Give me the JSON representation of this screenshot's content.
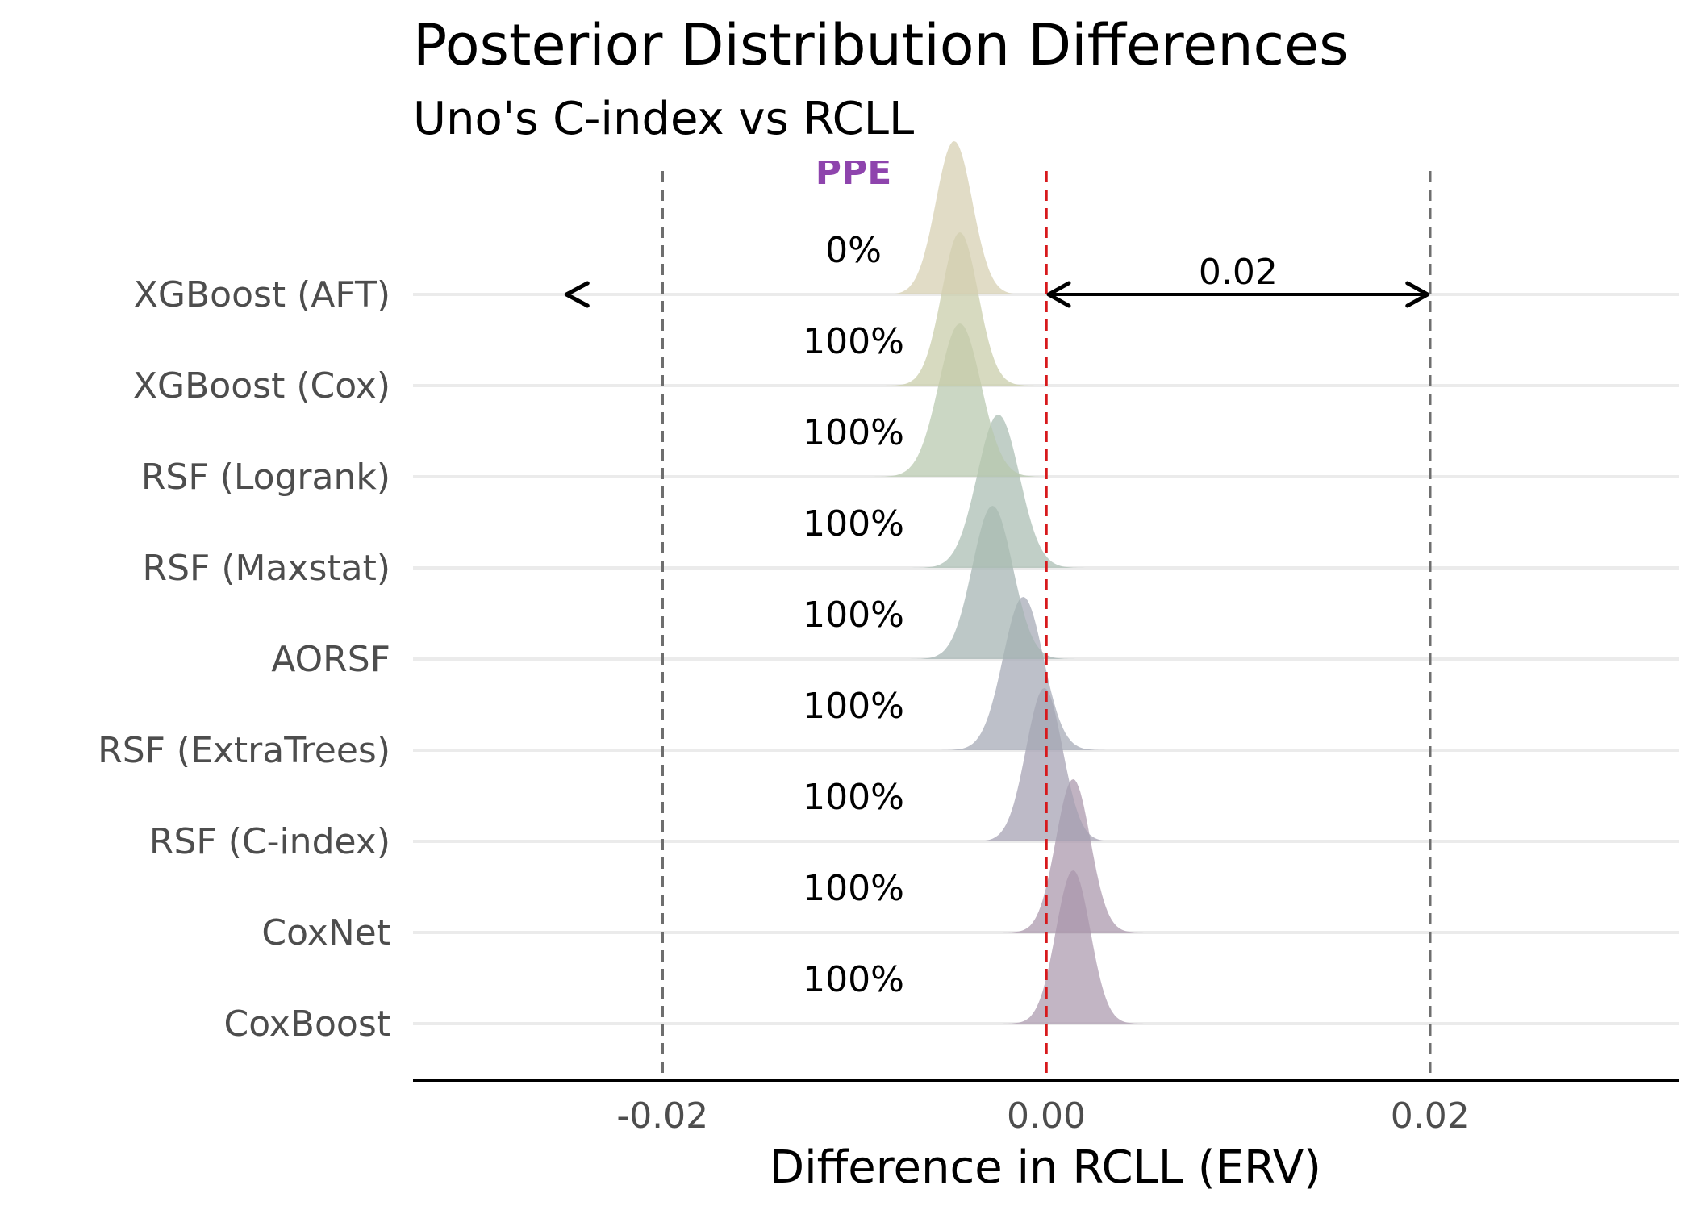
{
  "chart_data": {
    "type": "ridgeline",
    "title": "Posterior Distribution Differences",
    "subtitle": "Uno's C-index vs RCLL",
    "xlabel": "Difference in RCLL (ERV)",
    "xlim": [
      -0.033,
      0.033
    ],
    "x_ticks": [
      -0.02,
      0.0,
      0.02
    ],
    "x_tick_labels": [
      "-0.02",
      "0.00",
      "0.02"
    ],
    "rope_bounds": [
      -0.02,
      0.02
    ],
    "zero_line": 0.0,
    "rope_label": "PPE",
    "arrow_label": "0.02",
    "arrow_range": [
      0.0,
      0.02
    ],
    "left_arrow_x": -0.025,
    "grid": "horizontal",
    "categories": [
      {
        "name": "XGBoost (AFT)",
        "pct": "0%",
        "mean": -0.0048,
        "sd": 0.00095,
        "color": "#d6ceb0"
      },
      {
        "name": "XGBoost (Cox)",
        "pct": "100%",
        "mean": -0.0045,
        "sd": 0.00095,
        "color": "#c8cca7"
      },
      {
        "name": "RSF (Logrank)",
        "pct": "100%",
        "mean": -0.0045,
        "sd": 0.0011,
        "color": "#b7c7ad"
      },
      {
        "name": "RSF (Maxstat)",
        "pct": "100%",
        "mean": -0.0025,
        "sd": 0.0011,
        "color": "#a9bdb1"
      },
      {
        "name": "AORSF",
        "pct": "100%",
        "mean": -0.0028,
        "sd": 0.00105,
        "color": "#a3b3b2"
      },
      {
        "name": "RSF (ExtraTrees)",
        "pct": "100%",
        "mean": -0.0012,
        "sd": 0.00105,
        "color": "#a3a8b4"
      },
      {
        "name": "RSF (C-index)",
        "pct": "100%",
        "mean": -0.0001,
        "sd": 0.00095,
        "color": "#a49fb1"
      },
      {
        "name": "CoxNet",
        "pct": "100%",
        "mean": 0.0014,
        "sd": 0.0009,
        "color": "#a996ab"
      },
      {
        "name": "CoxBoost",
        "pct": "100%",
        "mean": 0.0014,
        "sd": 0.0009,
        "color": "#ab98ad"
      }
    ]
  }
}
